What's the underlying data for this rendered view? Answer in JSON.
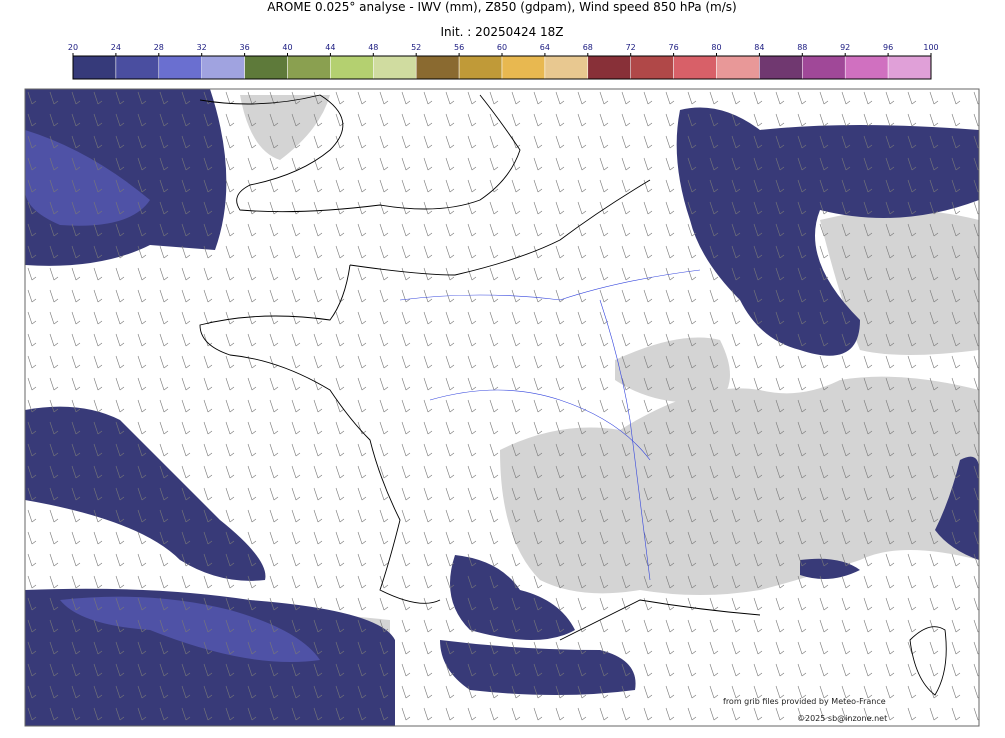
{
  "header": {
    "title": "AROME 0.025° analyse - IWV (mm), Z850 (gdpam), Wind speed 850 hPa (m/s)",
    "init": "Init. : 20250424 18Z"
  },
  "colorbar": {
    "ticks": [
      20,
      24,
      28,
      32,
      36,
      40,
      44,
      48,
      52,
      56,
      60,
      64,
      68,
      72,
      76,
      80,
      84,
      88,
      92,
      96,
      100
    ],
    "colors": [
      "#363a7a",
      "#4a4ea0",
      "#6a6fd0",
      "#a0a3e0",
      "#5e7a3a",
      "#8aa050",
      "#b4d070",
      "#d0dca0",
      "#8a6a30",
      "#c09a38",
      "#e8b850",
      "#e8c890",
      "#883038",
      "#b04848",
      "#d86068",
      "#e89898",
      "#703870",
      "#a04898",
      "#d070c0",
      "#e0a0d8"
    ]
  },
  "credits": {
    "source": "from grib files provided by Meteo-France",
    "copyright": "©2025 sb@inzone.net"
  }
}
